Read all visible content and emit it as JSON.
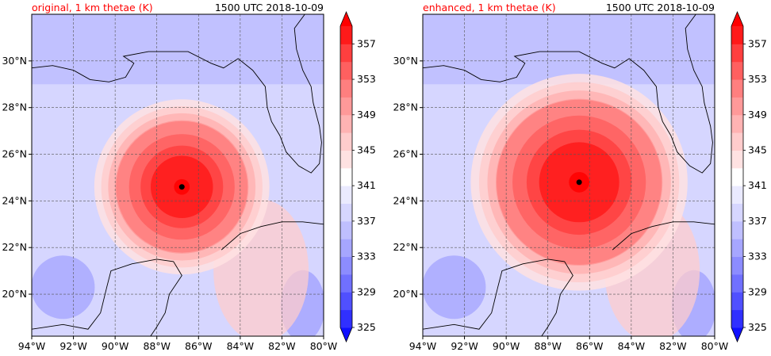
{
  "chart_data": [
    {
      "type": "heatmap",
      "title_left": "original, 1 km thetae (K)",
      "title_right": "1500 UTC 2018-10-09",
      "title_color": "#ff0000",
      "lon_ticks": [
        "94°W",
        "92°W",
        "90°W",
        "88°W",
        "86°W",
        "84°W",
        "82°W",
        "80°W"
      ],
      "lat_ticks": [
        "20°N",
        "22°N",
        "24°N",
        "26°N",
        "28°N",
        "30°N"
      ],
      "xlim": [
        -94,
        -80
      ],
      "ylim": [
        18.2,
        32
      ],
      "grid": true,
      "colorbar": {
        "ticks": [
          "325",
          "329",
          "333",
          "337",
          "341",
          "345",
          "349",
          "353",
          "357"
        ],
        "levels": [
          325,
          327,
          329,
          331,
          333,
          335,
          337,
          339,
          341,
          343,
          345,
          347,
          349,
          351,
          353,
          355,
          357,
          359
        ],
        "colors": [
          "#1010ff",
          "#3030ff",
          "#5050ff",
          "#7070ff",
          "#8c8cff",
          "#a6a6ff",
          "#bfbfff",
          "#d6d6ff",
          "#eaeaff",
          "#ffffff",
          "#ffe2e2",
          "#ffcccc",
          "#ffb3b3",
          "#ff9999",
          "#ff7f7f",
          "#ff6060",
          "#ff3f3f",
          "#ff1a1a",
          "#ff0000"
        ]
      },
      "storm_center": {
        "lon": -86.8,
        "lat": 24.6
      },
      "storm_core_radius_deg": 1.2,
      "storm_envelope_radius_deg": 4.2
    },
    {
      "type": "heatmap",
      "title_left": "enhanced, 1 km thetae (K)",
      "title_right": "1500 UTC 2018-10-09",
      "title_color": "#ff0000",
      "lon_ticks": [
        "94°W",
        "92°W",
        "90°W",
        "88°W",
        "86°W",
        "84°W",
        "82°W",
        "80°W"
      ],
      "lat_ticks": [
        "20°N",
        "22°N",
        "24°N",
        "26°N",
        "28°N",
        "30°N"
      ],
      "xlim": [
        -94,
        -80
      ],
      "ylim": [
        18.2,
        32
      ],
      "grid": true,
      "colorbar": {
        "ticks": [
          "325",
          "329",
          "333",
          "337",
          "341",
          "345",
          "349",
          "353",
          "357"
        ],
        "levels": [
          325,
          327,
          329,
          331,
          333,
          335,
          337,
          339,
          341,
          343,
          345,
          347,
          349,
          351,
          353,
          355,
          357,
          359
        ],
        "colors": [
          "#1010ff",
          "#3030ff",
          "#5050ff",
          "#7070ff",
          "#8c8cff",
          "#a6a6ff",
          "#bfbfff",
          "#d6d6ff",
          "#eaeaff",
          "#ffffff",
          "#ffe2e2",
          "#ffcccc",
          "#ffb3b3",
          "#ff9999",
          "#ff7f7f",
          "#ff6060",
          "#ff3f3f",
          "#ff1a1a",
          "#ff0000"
        ]
      },
      "storm_center": {
        "lon": -86.5,
        "lat": 24.8
      },
      "storm_core_radius_deg": 1.6,
      "storm_envelope_radius_deg": 5.2
    }
  ]
}
